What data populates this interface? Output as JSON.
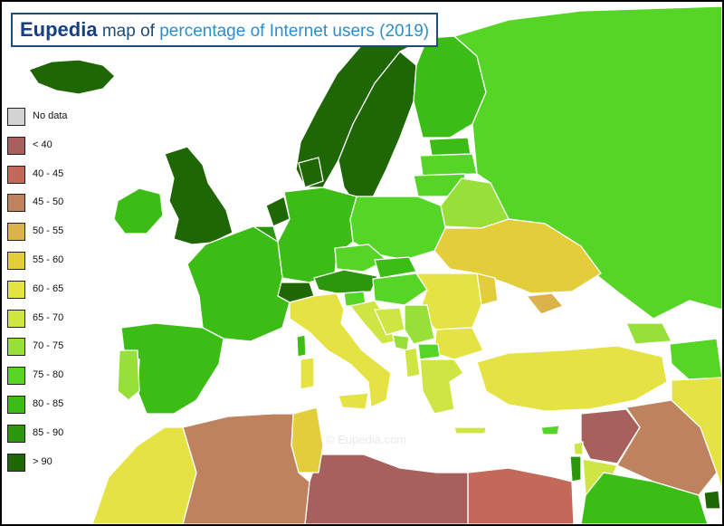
{
  "header": {
    "brand": "Eupedia",
    "title_part_1": " map of ",
    "title_part_2": "percentage of Internet users (2019)"
  },
  "watermark": "©  Eupedia.com",
  "legend": [
    {
      "label": "No data",
      "color": "#d3d3d3"
    },
    {
      "label": "< 40",
      "color": "#a8605d"
    },
    {
      "label": "40 - 45",
      "color": "#c3695a"
    },
    {
      "label": "45 - 50",
      "color": "#be825f"
    },
    {
      "label": "50 - 55",
      "color": "#dcb24a"
    },
    {
      "label": "55 - 60",
      "color": "#e4cd3a"
    },
    {
      "label": "60 - 65",
      "color": "#e5e244"
    },
    {
      "label": "65 - 70",
      "color": "#cfe544"
    },
    {
      "label": "70 - 75",
      "color": "#97e03a"
    },
    {
      "label": "75 - 80",
      "color": "#55d626"
    },
    {
      "label": "80 - 85",
      "color": "#3cbd15"
    },
    {
      "label": "85 - 90",
      "color": "#2c960d"
    },
    {
      "label": "> 90",
      "color": "#1f6605"
    }
  ],
  "colors": {
    "sea": "#ffffff",
    "border": "#ffffff",
    "outline": "#000000",
    "title_border": "#1c4e78"
  },
  "icons": [
    "eupedia-logo"
  ]
}
